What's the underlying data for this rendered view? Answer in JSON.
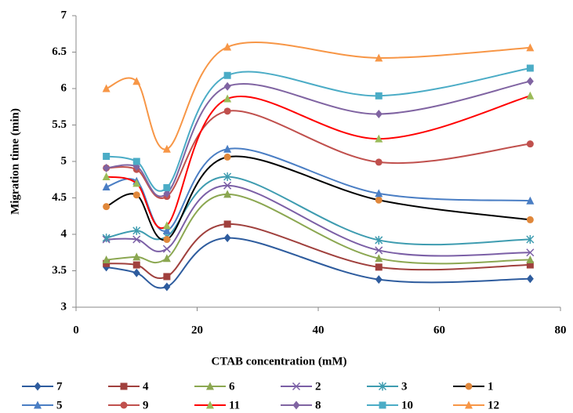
{
  "chart_data": {
    "type": "line",
    "smooth": true,
    "x_label": "CTAB concentration (mM)",
    "y_label": "Migration time (min)",
    "xlim": [
      0,
      80
    ],
    "xticks": [
      0,
      20,
      40,
      60,
      80
    ],
    "ylim": [
      3,
      7
    ],
    "yticks": [
      3,
      3.5,
      4,
      4.5,
      5,
      5.5,
      6,
      6.5,
      7
    ],
    "grid": false,
    "legend_position": "bottom",
    "x": [
      5,
      10,
      15,
      25,
      50,
      75
    ],
    "series": [
      {
        "name": "7",
        "color": "#2E5C9E",
        "marker_color": "#2E5C9E",
        "marker": "diamond",
        "values": [
          3.55,
          3.47,
          3.28,
          3.95,
          3.38,
          3.39
        ]
      },
      {
        "name": "4",
        "color": "#A0403D",
        "marker_color": "#A0403D",
        "marker": "square",
        "values": [
          3.6,
          3.58,
          3.42,
          4.14,
          3.55,
          3.58
        ]
      },
      {
        "name": "6",
        "color": "#8BA751",
        "marker_color": "#8BA751",
        "marker": "triangle",
        "values": [
          3.65,
          3.69,
          3.67,
          4.55,
          3.67,
          3.65
        ]
      },
      {
        "name": "2",
        "color": "#7B5FA6",
        "marker_color": "#7B5FA6",
        "marker": "x",
        "values": [
          3.93,
          3.93,
          3.8,
          4.67,
          3.78,
          3.75
        ]
      },
      {
        "name": "3",
        "color": "#3E9CB0",
        "marker_color": "#3E9CB0",
        "marker": "star",
        "values": [
          3.95,
          4.05,
          3.97,
          4.79,
          3.92,
          3.93
        ]
      },
      {
        "name": "1",
        "color": "#000000",
        "marker_color": "#E0873A",
        "marker": "circle",
        "values": [
          4.38,
          4.54,
          3.93,
          5.06,
          4.47,
          4.2
        ]
      },
      {
        "name": "5",
        "color": "#4A7EC4",
        "marker_color": "#4A7EC4",
        "marker": "triangle",
        "values": [
          4.65,
          4.73,
          4.05,
          5.17,
          4.56,
          4.46
        ]
      },
      {
        "name": "9",
        "color": "#C0504D",
        "marker_color": "#C0504D",
        "marker": "circle",
        "values": [
          4.91,
          4.89,
          4.52,
          5.69,
          4.99,
          5.24
        ]
      },
      {
        "name": "11",
        "color": "#FF0000",
        "marker_color": "#9BBB59",
        "marker": "triangle",
        "values": [
          4.79,
          4.7,
          4.12,
          5.86,
          5.31,
          5.9
        ]
      },
      {
        "name": "8",
        "color": "#8064A2",
        "marker_color": "#8064A2",
        "marker": "diamond",
        "values": [
          4.91,
          4.93,
          4.56,
          6.03,
          5.65,
          6.1
        ]
      },
      {
        "name": "10",
        "color": "#4BACC6",
        "marker_color": "#4BACC6",
        "marker": "square",
        "values": [
          5.07,
          5.0,
          4.64,
          6.18,
          5.9,
          6.28
        ]
      },
      {
        "name": "12",
        "color": "#F79646",
        "marker_color": "#F79646",
        "marker": "triangle",
        "values": [
          6.0,
          6.1,
          5.17,
          6.57,
          6.42,
          6.56
        ]
      }
    ]
  }
}
